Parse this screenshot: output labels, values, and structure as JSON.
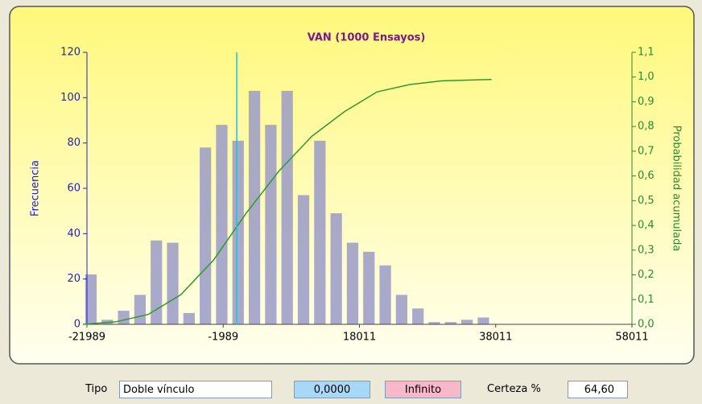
{
  "chart_data": {
    "type": "histogram",
    "title": "VAN (1000 Ensayos)",
    "y_label": "Frecuencia",
    "y2_label": "Probabilidad acumulada",
    "bins": [
      -22600,
      -20200,
      -17800,
      -15400,
      -13000,
      -10600,
      -8200,
      -5800,
      -3400,
      -1000,
      1400,
      3800,
      6200,
      8600,
      11000,
      13400,
      15800,
      18200,
      20600,
      23000,
      25400,
      27800,
      30200,
      32600,
      35000,
      37400
    ],
    "counts": [
      22,
      2,
      6,
      13,
      37,
      36,
      5,
      78,
      88,
      81,
      103,
      88,
      103,
      57,
      81,
      49,
      36,
      32,
      26,
      13,
      7,
      1,
      1,
      2,
      3
    ],
    "color": "#9a9ac8",
    "cumulative": {
      "color": "#2e9a2e",
      "axis": "y2",
      "x": [
        -22600,
        -17800,
        -13000,
        -8200,
        -3400,
        1400,
        6200,
        11000,
        15800,
        20600,
        25400,
        30200,
        37400
      ],
      "values": [
        0,
        0.01,
        0.04,
        0.12,
        0.26,
        0.45,
        0.62,
        0.76,
        0.86,
        0.94,
        0.97,
        0.985,
        0.99
      ]
    },
    "certainty_line": 0,
    "xlim": [
      -21989,
      58011
    ],
    "xticks": [
      -21989,
      -1989,
      18011,
      38011,
      58011
    ],
    "ylim": [
      0,
      120
    ],
    "yticks": [
      0,
      20,
      40,
      60,
      80,
      100,
      120
    ],
    "y2lim": [
      0,
      1.1
    ],
    "y2ticks": [
      {
        "value": 0,
        "label": "0,0"
      },
      {
        "value": 0.1,
        "label": "0,1"
      },
      {
        "value": 0.2,
        "label": "0,2"
      },
      {
        "value": 0.3,
        "label": "0,3"
      },
      {
        "value": 0.4,
        "label": "0,4"
      },
      {
        "value": 0.5,
        "label": "0,5"
      },
      {
        "value": 0.6,
        "label": "0,6"
      },
      {
        "value": 0.7,
        "label": "0,7"
      },
      {
        "value": 0.8,
        "label": "0,8"
      },
      {
        "value": 0.9,
        "label": "0,9"
      },
      {
        "value": 1.0,
        "label": "1,0"
      },
      {
        "value": 1.1,
        "label": "1,1"
      }
    ]
  },
  "controls": {
    "type_label": "Tipo",
    "type_value": "Doble vínculo",
    "lower": "0,0000",
    "upper": "Infinito",
    "certainty_label": "Certeza %",
    "certainty": "64,60"
  }
}
